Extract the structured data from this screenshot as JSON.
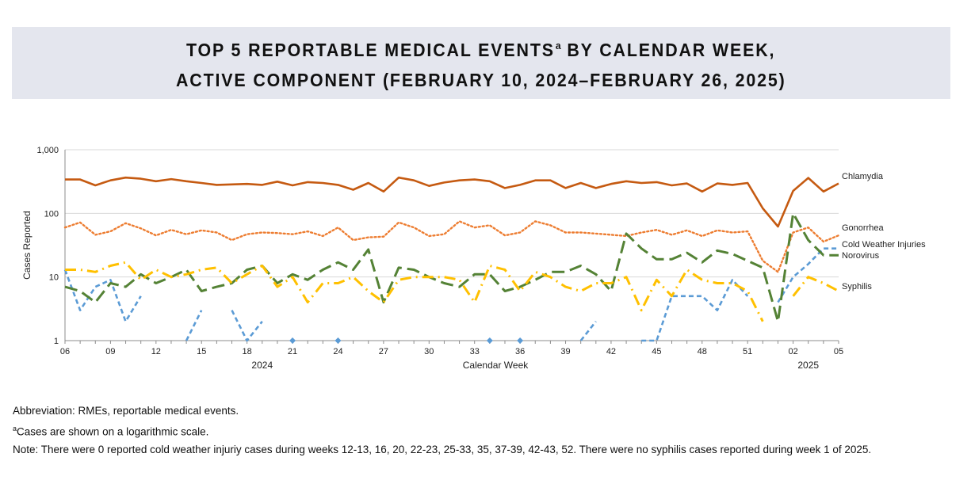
{
  "title": {
    "line1_pre": "TOP 5 REPORTABLE MEDICAL EVENTS",
    "line1_sup": "a",
    "line1_post": " BY CALENDAR WEEK,",
    "line2": "ACTIVE COMPONENT (FEBRUARY 10, 2024–FEBRUARY 26, 2025)"
  },
  "notes": {
    "abbreviation": "Abbreviation: RMEs, reportable medical events.",
    "footnote_mark": "a",
    "footnote_text": "Cases are shown on a logarithmic scale.",
    "note": "Note: There were 0 reported cold weather injuriy cases during weeks 12-13, 16, 20, 22-23, 25-33, 35, 37-39, 42-43, 52. There were no syphilis cases reported during week 1 of 2025."
  },
  "chart_data": {
    "type": "line",
    "ylabel": "Cases Reported",
    "xlabel": "Calendar Week",
    "y_scale": "log",
    "ylim": [
      1,
      1000
    ],
    "yticks": [
      1,
      10,
      100,
      1000
    ],
    "ytick_labels": [
      "1",
      "10",
      "100",
      "1,000"
    ],
    "year_labels": [
      {
        "label": "2024",
        "at_week_index": 13
      },
      {
        "label": "2025",
        "at_week_index": 49
      }
    ],
    "weeks": [
      "06",
      "07",
      "08",
      "09",
      "10",
      "11",
      "12",
      "13",
      "14",
      "15",
      "16",
      "17",
      "18",
      "19",
      "20",
      "21",
      "22",
      "23",
      "24",
      "25",
      "26",
      "27",
      "28",
      "29",
      "30",
      "31",
      "32",
      "33",
      "34",
      "35",
      "36",
      "37",
      "38",
      "39",
      "40",
      "41",
      "42",
      "43",
      "44",
      "45",
      "46",
      "47",
      "48",
      "49",
      "50",
      "51",
      "52",
      "01",
      "02",
      "03",
      "04",
      "05"
    ],
    "tick_labels": [
      "06",
      "09",
      "12",
      "15",
      "18",
      "21",
      "24",
      "27",
      "30",
      "33",
      "36",
      "39",
      "42",
      "45",
      "48",
      "51",
      "02",
      "05"
    ],
    "legend": "right-of-line-ends",
    "series": [
      {
        "name": "Chlamydia",
        "color": "#c55a11",
        "style": "solid",
        "values": [
          340,
          340,
          275,
          330,
          365,
          350,
          320,
          345,
          320,
          300,
          280,
          285,
          290,
          280,
          315,
          275,
          310,
          300,
          280,
          235,
          300,
          220,
          365,
          330,
          270,
          305,
          330,
          340,
          320,
          250,
          280,
          330,
          330,
          250,
          300,
          250,
          290,
          320,
          300,
          310,
          275,
          295,
          220,
          295,
          280,
          300,
          120,
          62,
          225,
          360,
          220,
          295
        ]
      },
      {
        "name": "Gonorrhea",
        "color": "#ed7d31",
        "style": "dotted",
        "values": [
          60,
          72,
          46,
          52,
          70,
          58,
          45,
          55,
          47,
          54,
          50,
          38,
          47,
          50,
          49,
          47,
          52,
          44,
          60,
          38,
          42,
          43,
          72,
          60,
          44,
          47,
          75,
          60,
          65,
          45,
          50,
          75,
          65,
          50,
          50,
          48,
          46,
          44,
          50,
          55,
          46,
          54,
          44,
          54,
          50,
          52,
          18,
          12,
          50,
          60,
          36,
          45
        ]
      },
      {
        "name": "Cold Weather Injuries",
        "color": "#5b9bd5",
        "style": "dashed",
        "values": [
          13,
          3,
          7,
          9,
          2,
          5,
          null,
          null,
          1,
          3,
          null,
          3,
          1,
          2,
          null,
          1,
          null,
          null,
          1,
          null,
          null,
          null,
          null,
          null,
          null,
          null,
          null,
          null,
          1,
          null,
          1,
          null,
          null,
          null,
          1,
          2,
          null,
          null,
          1,
          1,
          5,
          5,
          5,
          3,
          9,
          5,
          null,
          4,
          10,
          16,
          28,
          28
        ]
      },
      {
        "name": "Norovirus",
        "color": "#548235",
        "style": "longdash",
        "values": [
          7,
          6,
          4,
          8,
          7,
          11,
          8,
          10,
          13,
          6,
          7,
          8,
          13,
          15,
          8,
          11,
          9,
          13,
          17,
          13,
          27,
          4,
          14,
          13,
          10,
          8,
          7,
          11,
          11,
          6,
          7,
          9,
          12,
          12,
          15,
          11,
          6,
          48,
          28,
          19,
          19,
          24,
          17,
          26,
          23,
          18,
          14,
          2,
          100,
          38,
          22,
          22
        ]
      },
      {
        "name": "Syphilis",
        "color": "#ffc000",
        "style": "dashdot",
        "values": [
          13,
          13,
          12,
          15,
          17,
          9,
          13,
          10,
          11,
          13,
          14,
          8,
          11,
          15,
          7,
          10,
          4,
          8,
          8,
          10,
          6,
          4,
          9,
          10,
          10,
          10,
          9,
          4,
          15,
          13,
          6,
          12,
          10,
          7,
          6,
          8,
          8,
          10,
          3,
          9,
          5,
          13,
          9,
          8,
          8,
          6,
          2,
          null,
          5,
          10,
          8,
          6
        ]
      }
    ]
  }
}
